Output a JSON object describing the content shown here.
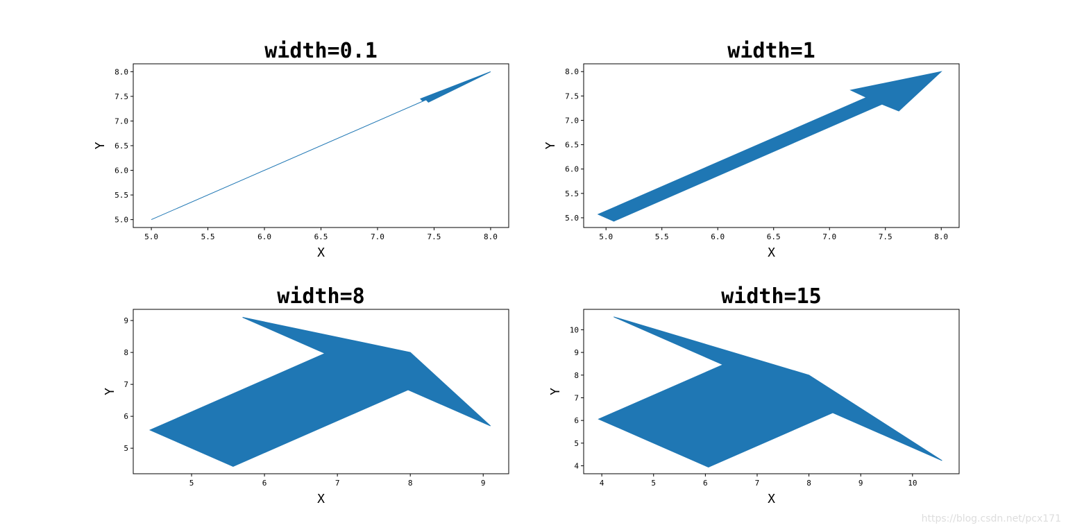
{
  "watermark": "https://blog.csdn.net/pcx171",
  "chart_data": [
    {
      "type": "arrow",
      "title": "width=0.1",
      "xlabel": "X",
      "ylabel": "Y",
      "xlim": [
        4.84,
        8.16
      ],
      "ylim": [
        4.84,
        8.16
      ],
      "xticks": [
        5.0,
        5.5,
        6.0,
        6.5,
        7.0,
        7.5,
        8.0
      ],
      "yticks": [
        5.0,
        5.5,
        6.0,
        6.5,
        7.0,
        7.5,
        8.0
      ],
      "tick_decimals": 1,
      "color": "#1f77b4",
      "polygon": [
        [
          5.0,
          5.0
        ],
        [
          7.4,
          7.4
        ],
        [
          7.38,
          7.45
        ],
        [
          8.0,
          8.0
        ],
        [
          7.45,
          7.38
        ],
        [
          7.43,
          7.43
        ],
        [
          5.0,
          5.0
        ]
      ]
    },
    {
      "type": "arrow",
      "title": "width=1",
      "xlabel": "X",
      "ylabel": "Y",
      "xlim": [
        4.8,
        8.16
      ],
      "ylim": [
        4.8,
        8.16
      ],
      "xticks": [
        5.0,
        5.5,
        6.0,
        6.5,
        7.0,
        7.5,
        8.0
      ],
      "yticks": [
        5.0,
        5.5,
        6.0,
        6.5,
        7.0,
        7.5,
        8.0
      ],
      "tick_decimals": 1,
      "color": "#1f77b4",
      "polygon": [
        [
          4.93,
          5.07
        ],
        [
          7.33,
          7.47
        ],
        [
          7.19,
          7.62
        ],
        [
          8.0,
          8.0
        ],
        [
          7.62,
          7.19
        ],
        [
          7.47,
          7.33
        ],
        [
          5.07,
          4.93
        ]
      ]
    },
    {
      "type": "arrow",
      "title": "width=8",
      "xlabel": "X",
      "ylabel": "Y",
      "xlim": [
        4.2,
        9.35
      ],
      "ylim": [
        4.2,
        9.35
      ],
      "xticks": [
        5,
        6,
        7,
        8,
        9
      ],
      "yticks": [
        5,
        6,
        7,
        8,
        9
      ],
      "tick_decimals": 0,
      "color": "#1f77b4",
      "polygon": [
        [
          4.43,
          5.57
        ],
        [
          6.83,
          7.97
        ],
        [
          5.7,
          9.1
        ],
        [
          8.0,
          8.0
        ],
        [
          9.1,
          5.7
        ],
        [
          7.97,
          6.83
        ],
        [
          5.57,
          4.43
        ]
      ]
    },
    {
      "type": "arrow",
      "title": "width=15",
      "xlabel": "X",
      "ylabel": "Y",
      "xlim": [
        3.65,
        10.9
      ],
      "ylim": [
        3.65,
        10.9
      ],
      "xticks": [
        4,
        5,
        6,
        7,
        8,
        9,
        10
      ],
      "yticks": [
        4,
        5,
        6,
        7,
        8,
        9,
        10
      ],
      "tick_decimals": 0,
      "color": "#1f77b4",
      "polygon": [
        [
          3.94,
          6.06
        ],
        [
          6.34,
          8.46
        ],
        [
          4.23,
          10.57
        ],
        [
          8.0,
          8.0
        ],
        [
          10.57,
          4.23
        ],
        [
          8.46,
          6.34
        ],
        [
          6.06,
          3.94
        ]
      ]
    }
  ]
}
